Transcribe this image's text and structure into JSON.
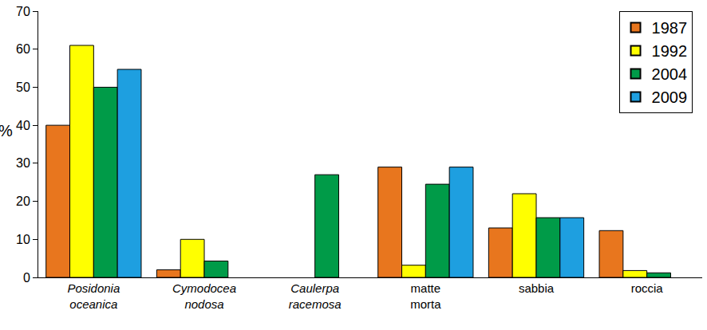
{
  "chart_data": {
    "type": "bar",
    "y_label": "%",
    "categories": [
      "Posidonia oceanica",
      "Cymodocea nodosa",
      "Caulerpa racemosa",
      "matte morta",
      "sabbia",
      "roccia"
    ],
    "series": [
      {
        "name": "1987",
        "color": "#E8761E",
        "values": [
          40,
          2,
          null,
          29,
          13,
          12.3
        ]
      },
      {
        "name": "1992",
        "color": "#FFFF00",
        "values": [
          61,
          10,
          null,
          3.2,
          22,
          1.8
        ]
      },
      {
        "name": "2004",
        "color": "#009B48",
        "values": [
          50,
          4.3,
          27,
          24.5,
          15.7,
          1.2
        ]
      },
      {
        "name": "2009",
        "color": "#1E9FE0",
        "values": [
          54.7,
          null,
          null,
          29,
          15.7,
          null
        ]
      }
    ],
    "ylim": [
      0,
      70
    ],
    "yticks": [
      0,
      10,
      20,
      30,
      40,
      50,
      60,
      70
    ],
    "grid": false,
    "legend": "top-right"
  }
}
